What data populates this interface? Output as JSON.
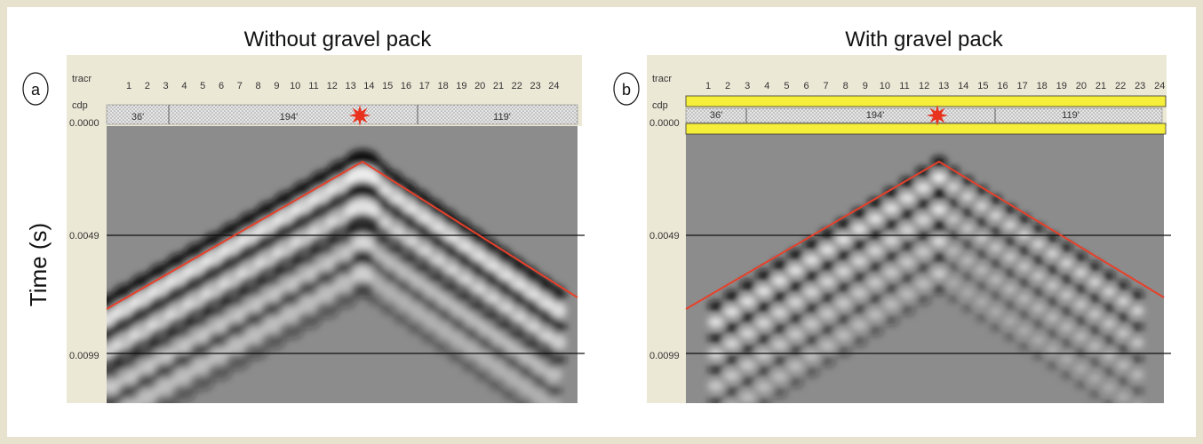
{
  "y_label": "Time (s)",
  "panels": [
    {
      "letter": "a",
      "title": "Without gravel pack",
      "tracr_label": "tracr",
      "cdp_label": "cdp",
      "traces": [
        "1",
        "2",
        "3",
        "4",
        "5",
        "6",
        "7",
        "8",
        "9",
        "10",
        "11",
        "12",
        "13",
        "14",
        "15",
        "16",
        "17",
        "18",
        "19",
        "20",
        "21",
        "22",
        "23",
        "24"
      ],
      "cdp_values": [
        "36'",
        "194'",
        "119'"
      ],
      "time_labels": [
        "0.0000",
        "0.0049",
        "0.0099"
      ]
    },
    {
      "letter": "b",
      "title": "With gravel pack",
      "tracr_label": "tracr",
      "cdp_label": "cdp",
      "traces": [
        "1",
        "2",
        "3",
        "4",
        "5",
        "6",
        "7",
        "8",
        "9",
        "10",
        "11",
        "12",
        "13",
        "14",
        "15",
        "16",
        "17",
        "18",
        "19",
        "20",
        "21",
        "22",
        "23",
        "24"
      ],
      "cdp_values": [
        "36'",
        "194'",
        "119'"
      ],
      "time_labels": [
        "0.0000",
        "0.0049",
        "0.0099"
      ]
    }
  ]
}
